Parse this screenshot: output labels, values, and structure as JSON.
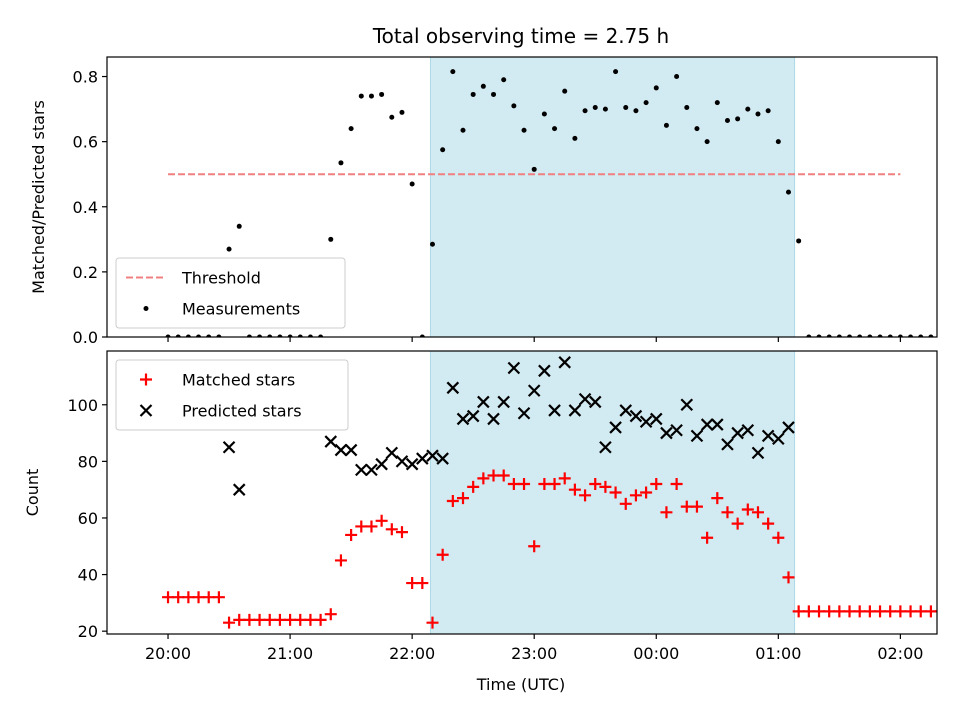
{
  "title": "Total observing time = 2.75 h",
  "xlabel": "Time (UTC)",
  "x_ticks": [
    "20:00",
    "21:00",
    "22:00",
    "23:00",
    "00:00",
    "01:00",
    "02:00"
  ],
  "colors": {
    "shade": "#add8e6",
    "threshold": "#f08080",
    "matched": "#ff0000",
    "predicted": "#000000",
    "measurements": "#000000"
  },
  "chart_data": [
    {
      "type": "scatter",
      "ylabel": "Matched/Predicted stars",
      "xlim_hours": [
        19.5,
        26.3
      ],
      "ylim": [
        0,
        0.86
      ],
      "y_ticks": [
        "0.0",
        "0.2",
        "0.4",
        "0.6",
        "0.8"
      ],
      "y_tick_values": [
        0,
        0.2,
        0.4,
        0.6,
        0.8
      ],
      "shaded_span": [
        "22:09",
        "01:08"
      ],
      "legend_position": "lower-left",
      "threshold": {
        "name": "Threshold",
        "y": 0.5,
        "x_range": [
          "20:00",
          "02:00"
        ]
      },
      "series": [
        {
          "name": "Measurements",
          "marker": "dot",
          "points": [
            [
              "20:00",
              0
            ],
            [
              "20:05",
              0
            ],
            [
              "20:10",
              0
            ],
            [
              "20:15",
              0
            ],
            [
              "20:20",
              0
            ],
            [
              "20:25",
              0
            ],
            [
              "20:30",
              0.27
            ],
            [
              "20:35",
              0.34
            ],
            [
              "20:40",
              0
            ],
            [
              "20:45",
              0
            ],
            [
              "20:50",
              0
            ],
            [
              "20:55",
              0
            ],
            [
              "21:00",
              0
            ],
            [
              "21:05",
              0
            ],
            [
              "21:10",
              0
            ],
            [
              "21:15",
              0
            ],
            [
              "21:20",
              0.3
            ],
            [
              "21:25",
              0.535
            ],
            [
              "21:30",
              0.64
            ],
            [
              "21:35",
              0.74
            ],
            [
              "21:40",
              0.74
            ],
            [
              "21:45",
              0.745
            ],
            [
              "21:50",
              0.675
            ],
            [
              "21:55",
              0.69
            ],
            [
              "22:00",
              0.47
            ],
            [
              "22:05",
              0
            ],
            [
              "22:10",
              0.285
            ],
            [
              "22:15",
              0.575
            ],
            [
              "22:20",
              0.815
            ],
            [
              "22:25",
              0.635
            ],
            [
              "22:30",
              0.745
            ],
            [
              "22:35",
              0.77
            ],
            [
              "22:40",
              0.745
            ],
            [
              "22:45",
              0.79
            ],
            [
              "22:50",
              0.71
            ],
            [
              "22:55",
              0.635
            ],
            [
              "23:00",
              0.515
            ],
            [
              "23:05",
              0.685
            ],
            [
              "23:10",
              0.64
            ],
            [
              "23:15",
              0.755
            ],
            [
              "23:20",
              0.61
            ],
            [
              "23:25",
              0.695
            ],
            [
              "23:30",
              0.705
            ],
            [
              "23:35",
              0.7
            ],
            [
              "23:40",
              0.815
            ],
            [
              "23:45",
              0.705
            ],
            [
              "23:50",
              0.695
            ],
            [
              "23:55",
              0.72
            ],
            [
              "00:00",
              0.765
            ],
            [
              "00:05",
              0.65
            ],
            [
              "00:10",
              0.8
            ],
            [
              "00:15",
              0.705
            ],
            [
              "00:20",
              0.64
            ],
            [
              "00:25",
              0.6
            ],
            [
              "00:30",
              0.72
            ],
            [
              "00:35",
              0.665
            ],
            [
              "00:40",
              0.67
            ],
            [
              "00:45",
              0.7
            ],
            [
              "00:50",
              0.685
            ],
            [
              "00:55",
              0.695
            ],
            [
              "01:00",
              0.6
            ],
            [
              "01:05",
              0.445
            ],
            [
              "01:10",
              0.295
            ],
            [
              "01:15",
              0
            ],
            [
              "01:20",
              0
            ],
            [
              "01:25",
              0
            ],
            [
              "01:30",
              0
            ],
            [
              "01:35",
              0
            ],
            [
              "01:40",
              0
            ],
            [
              "01:45",
              0
            ],
            [
              "01:50",
              0
            ],
            [
              "01:55",
              0
            ],
            [
              "02:00",
              0
            ],
            [
              "02:05",
              0
            ],
            [
              "02:10",
              0
            ],
            [
              "02:15",
              0
            ],
            [
              "02:20",
              0
            ]
          ]
        }
      ]
    },
    {
      "type": "scatter",
      "ylabel": "Count",
      "xlim_hours": [
        19.5,
        26.3
      ],
      "ylim": [
        19,
        119
      ],
      "y_ticks": [
        "20",
        "40",
        "60",
        "80",
        "100"
      ],
      "y_tick_values": [
        20,
        40,
        60,
        80,
        100
      ],
      "shaded_span": [
        "22:09",
        "01:08"
      ],
      "legend_position": "upper-left",
      "series": [
        {
          "name": "Matched stars",
          "marker": "plus",
          "points": [
            [
              "20:00",
              32
            ],
            [
              "20:05",
              32
            ],
            [
              "20:10",
              32
            ],
            [
              "20:15",
              32
            ],
            [
              "20:20",
              32
            ],
            [
              "20:25",
              32
            ],
            [
              "20:30",
              23
            ],
            [
              "20:35",
              24
            ],
            [
              "20:40",
              24
            ],
            [
              "20:45",
              24
            ],
            [
              "20:50",
              24
            ],
            [
              "20:55",
              24
            ],
            [
              "21:00",
              24
            ],
            [
              "21:05",
              24
            ],
            [
              "21:10",
              24
            ],
            [
              "21:15",
              24
            ],
            [
              "21:20",
              26
            ],
            [
              "21:25",
              45
            ],
            [
              "21:30",
              54
            ],
            [
              "21:35",
              57
            ],
            [
              "21:40",
              57
            ],
            [
              "21:45",
              59
            ],
            [
              "21:50",
              56
            ],
            [
              "21:55",
              55
            ],
            [
              "22:00",
              37
            ],
            [
              "22:05",
              37
            ],
            [
              "22:10",
              23
            ],
            [
              "22:15",
              47
            ],
            [
              "22:20",
              66
            ],
            [
              "22:25",
              67
            ],
            [
              "22:30",
              71
            ],
            [
              "22:35",
              74
            ],
            [
              "22:40",
              75
            ],
            [
              "22:45",
              75
            ],
            [
              "22:50",
              72
            ],
            [
              "22:55",
              72
            ],
            [
              "23:00",
              50
            ],
            [
              "23:05",
              72
            ],
            [
              "23:10",
              72
            ],
            [
              "23:15",
              74
            ],
            [
              "23:20",
              70
            ],
            [
              "23:25",
              68
            ],
            [
              "23:30",
              72
            ],
            [
              "23:35",
              71
            ],
            [
              "23:40",
              69
            ],
            [
              "23:45",
              65
            ],
            [
              "23:50",
              68
            ],
            [
              "23:55",
              69
            ],
            [
              "00:00",
              72
            ],
            [
              "00:05",
              62
            ],
            [
              "00:10",
              72
            ],
            [
              "00:15",
              64
            ],
            [
              "00:20",
              64
            ],
            [
              "00:25",
              53
            ],
            [
              "00:30",
              67
            ],
            [
              "00:35",
              62
            ],
            [
              "00:40",
              58
            ],
            [
              "00:45",
              63
            ],
            [
              "00:50",
              62
            ],
            [
              "00:55",
              58
            ],
            [
              "01:00",
              53
            ],
            [
              "01:05",
              39
            ],
            [
              "01:10",
              27
            ],
            [
              "01:15",
              27
            ],
            [
              "01:20",
              27
            ],
            [
              "01:25",
              27
            ],
            [
              "01:30",
              27
            ],
            [
              "01:35",
              27
            ],
            [
              "01:40",
              27
            ],
            [
              "01:45",
              27
            ],
            [
              "01:50",
              27
            ],
            [
              "01:55",
              27
            ],
            [
              "02:00",
              27
            ],
            [
              "02:05",
              27
            ],
            [
              "02:10",
              27
            ],
            [
              "02:15",
              27
            ],
            [
              "02:20",
              27
            ]
          ]
        },
        {
          "name": "Predicted stars",
          "marker": "x",
          "points": [
            [
              "20:30",
              85
            ],
            [
              "20:35",
              70
            ],
            [
              "21:20",
              87
            ],
            [
              "21:25",
              84
            ],
            [
              "21:30",
              84
            ],
            [
              "21:35",
              77
            ],
            [
              "21:40",
              77
            ],
            [
              "21:45",
              79
            ],
            [
              "21:50",
              83
            ],
            [
              "21:55",
              80
            ],
            [
              "22:00",
              79
            ],
            [
              "22:05",
              81
            ],
            [
              "22:10",
              82
            ],
            [
              "22:15",
              81
            ],
            [
              "22:20",
              106
            ],
            [
              "22:25",
              95
            ],
            [
              "22:30",
              96
            ],
            [
              "22:35",
              101
            ],
            [
              "22:40",
              95
            ],
            [
              "22:45",
              101
            ],
            [
              "22:50",
              113
            ],
            [
              "22:55",
              97
            ],
            [
              "23:00",
              105
            ],
            [
              "23:05",
              112
            ],
            [
              "23:10",
              98
            ],
            [
              "23:15",
              115
            ],
            [
              "23:20",
              98
            ],
            [
              "23:25",
              102
            ],
            [
              "23:30",
              101
            ],
            [
              "23:35",
              85
            ],
            [
              "23:40",
              92
            ],
            [
              "23:45",
              98
            ],
            [
              "23:50",
              96
            ],
            [
              "23:55",
              94
            ],
            [
              "00:00",
              95
            ],
            [
              "00:05",
              90
            ],
            [
              "00:10",
              91
            ],
            [
              "00:15",
              100
            ],
            [
              "00:20",
              89
            ],
            [
              "00:25",
              93
            ],
            [
              "00:30",
              93
            ],
            [
              "00:35",
              86
            ],
            [
              "00:40",
              90
            ],
            [
              "00:45",
              91
            ],
            [
              "00:50",
              83
            ],
            [
              "00:55",
              89
            ],
            [
              "01:00",
              88
            ],
            [
              "01:05",
              92
            ]
          ]
        }
      ]
    }
  ]
}
